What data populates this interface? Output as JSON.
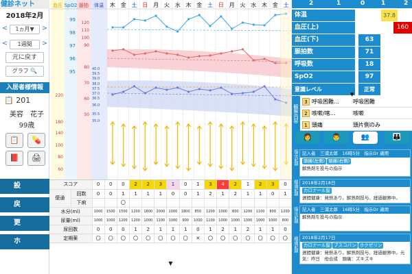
{
  "app": {
    "title": "健診ネット"
  },
  "left": {
    "date": "2018年2月",
    "range": "1ヵ月",
    "range_caret": "▼",
    "prev": "<",
    "next": ">",
    "week": "1週間",
    "back": "元に戻す",
    "graph": "グラフ",
    "resident_header": "入居者様情報",
    "room": "201",
    "name": "美容　花子",
    "age": "99歳",
    "settings": "設定",
    "return": "戻る",
    "refresh": "更新",
    "home": "ホーム"
  },
  "chart": {
    "col_headers": [
      "血圧",
      "SpO2",
      "脈拍",
      "体温"
    ],
    "days": [
      "木",
      "金",
      "土",
      "日",
      "月",
      "火",
      "水",
      "木",
      "金",
      "土",
      "日",
      "月",
      "火",
      "水",
      "木",
      "金",
      "土"
    ],
    "spo2_ticks": [
      "99",
      "98",
      "97",
      "96",
      "95"
    ],
    "pulse_ticks": [
      "120",
      "110",
      "100",
      "90",
      "80",
      "70",
      "60",
      "50"
    ],
    "bp_ticks": [
      "220",
      "180",
      "140",
      "100",
      "80",
      "60"
    ],
    "temp_ticks": [
      "40.0",
      "39.5",
      "39.0",
      "38.0",
      "37.5",
      "37.0",
      "36.5",
      "36.0",
      "35.5",
      "35.0"
    ]
  },
  "table": {
    "groups": {
      "bowel": "便通"
    },
    "rows": [
      {
        "label": "スコア",
        "vals": [
          "0",
          "0",
          "0",
          "2",
          "2",
          "3",
          "1",
          "0",
          "1",
          "3",
          "4",
          "2",
          "1",
          "2",
          "3",
          "0"
        ]
      },
      {
        "label": "回数",
        "vals": [
          "0",
          "0",
          "1",
          "1",
          "1",
          "1",
          "0",
          "0",
          "1",
          "2",
          "1",
          "2",
          "1",
          "1",
          "0",
          "1"
        ]
      },
      {
        "label": "下痢",
        "vals": [
          "",
          "",
          "〇",
          "",
          "",
          "",
          "",
          "",
          "",
          "",
          "",
          "",
          "",
          "",
          "",
          ""
        ]
      },
      {
        "label": "水分(ml)",
        "vals": [
          "1000",
          "1500",
          "1500",
          "1200",
          "1800",
          "2000",
          "1000",
          "1800",
          "850",
          "1200",
          "1000",
          "800",
          "1200",
          "1100",
          "800",
          "1200"
        ]
      },
      {
        "label": "尿量(ml)",
        "vals": [
          "1000",
          "1000",
          "1200",
          "1200",
          "1000",
          "1100",
          "1000",
          "900",
          "1000",
          "1100",
          "1000",
          "1000",
          "1300",
          "1000",
          "1000",
          "800"
        ]
      },
      {
        "label": "尿回数",
        "vals": [
          "0",
          "0",
          "0",
          "1",
          "2",
          "1",
          "1",
          "1",
          "0",
          "1",
          "2",
          "1",
          "2",
          "1",
          "1",
          "0"
        ]
      },
      {
        "label": "定期薬",
        "vals": [
          "〇",
          "〇",
          "〇",
          "〇",
          "〇",
          "〇",
          "〇",
          "〇",
          "✕",
          "〇",
          "〇",
          "〇",
          "〇",
          "〇",
          "〇",
          "〇"
        ]
      }
    ]
  },
  "right": {
    "top_nums": [
      "2",
      "1",
      "0",
      "1",
      "2"
    ],
    "vitals": [
      {
        "label": "体温",
        "value": "",
        "extra": "37.8"
      },
      {
        "label": "血圧(上)",
        "value": "",
        "extra": "160"
      },
      {
        "label": "血圧(下)",
        "value": "63"
      },
      {
        "label": "脈拍数",
        "value": "71"
      },
      {
        "label": "呼吸数",
        "value": "18"
      },
      {
        "label": "SpO2",
        "value": "97"
      },
      {
        "label": "意識レベル",
        "value": "正常"
      }
    ],
    "symptom_header": "観察内容",
    "symptoms": [
      {
        "num": "3",
        "a": "呼吸困難…",
        "b": "呼吸困難"
      },
      {
        "num": "2",
        "a": "咳嗽/喀…",
        "b": "咳嗽"
      },
      {
        "num": "1",
        "a": "頭痛",
        "b": "頭片側のみ"
      }
    ],
    "records": [
      {
        "writer": "記入者　三浦太郎　16時5分　指示Dr 適用",
        "tags": [
          "頭痛(左側)",
          "頭痛(右側)"
        ],
        "body": "解熱剤を投与の指示"
      },
      {
        "date": "2018年2月18日",
        "tags": [
          "カロナール錠"
        ],
        "body": "週間健康：発熱あり。解熱剤投与、経過観察中。"
      },
      {
        "writer": "記入者　三浦太郎　16時5分　指示Dr 適用",
        "body": "解熱剤を投与の指示"
      },
      {
        "date": "2018年2月17日",
        "tags": [
          "カロナール錠",
          "ブスコパン",
          "ホクゼリン"
        ],
        "body": "週間健康：発熱あり。解熱剤投与、経過観察中。元気：昨日　他合成　頭痛：ズキズキ"
      }
    ],
    "side_labels": [
      "指示記録",
      "経過記録",
      "指示記録",
      "経過記録"
    ]
  },
  "colors": {
    "accent": "#1c8ccf",
    "bp_band": "#f6c7cc",
    "temp_band": "#cbd4f3",
    "spo2_line": "#3aa7e8",
    "alert": "#e00000",
    "highlight": "#f7e24a"
  }
}
